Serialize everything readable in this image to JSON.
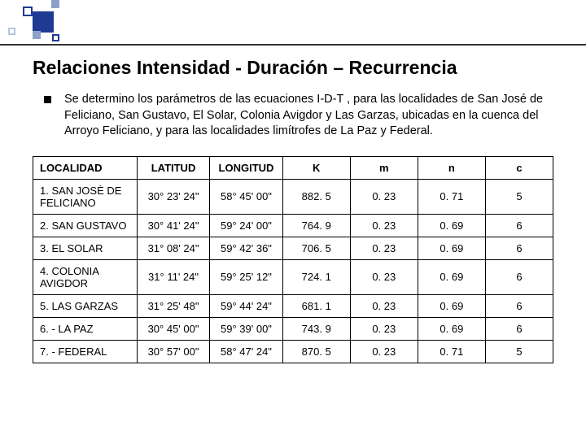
{
  "title": "Relaciones Intensidad - Duración – Recurrencia",
  "paragraph": "Se  determino los parámetros de las ecuaciones I-D-T , para las localidades de San José de Feliciano, San Gustavo, El Solar, Colonia Avigdor y Las Garzas, ubicadas en la cuenca del Arroyo Feliciano, y para las localidades limítrofes de La Paz y Federal.",
  "table": {
    "columns": [
      "LOCALIDAD",
      "LATITUD",
      "LONGITUD",
      "K",
      "m",
      "n",
      "c"
    ],
    "rows": [
      {
        "loc": "1.   SAN JOSÈ DE FELICIANO",
        "lat": "30° 23' 24\"",
        "lon": "58° 45' 00\"",
        "k": "882. 5",
        "m": "0. 23",
        "n": "0. 71",
        "c": "5"
      },
      {
        "loc": "2.   SAN GUSTAVO",
        "lat": "30° 41' 24\"",
        "lon": "59° 24' 00\"",
        "k": "764. 9",
        "m": "0. 23",
        "n": "0. 69",
        "c": "6"
      },
      {
        "loc": "3.   EL SOLAR",
        "lat": "31° 08' 24\"",
        "lon": "59° 42' 36\"",
        "k": "706. 5",
        "m": "0. 23",
        "n": "0. 69",
        "c": "6"
      },
      {
        "loc": "4.   COLONIA AVIGDOR",
        "lat": "31° 11' 24\"",
        "lon": "59° 25' 12\"",
        "k": "724. 1",
        "m": "0. 23",
        "n": "0. 69",
        "c": "6"
      },
      {
        "loc": "5.   LAS GARZAS",
        "lat": "31° 25' 48\"",
        "lon": "59° 44' 24\"",
        "k": "681. 1",
        "m": "0. 23",
        "n": "0. 69",
        "c": "6"
      },
      {
        "loc": "6. -  LA PAZ",
        "lat": "30° 45' 00\"",
        "lon": "59° 39' 00\"",
        "k": "743. 9",
        "m": "0. 23",
        "n": "0. 69",
        "c": "6"
      },
      {
        "loc": "7. -  FEDERAL",
        "lat": "30° 57' 00\"",
        "lon": "58° 47' 24\"",
        "k": "870. 5",
        "m": "0. 23",
        "n": "0. 71",
        "c": "5"
      }
    ]
  },
  "colors": {
    "accent": "#1f3a93",
    "accent_light": "#8da0c7",
    "border": "#000000",
    "background": "#ffffff"
  }
}
